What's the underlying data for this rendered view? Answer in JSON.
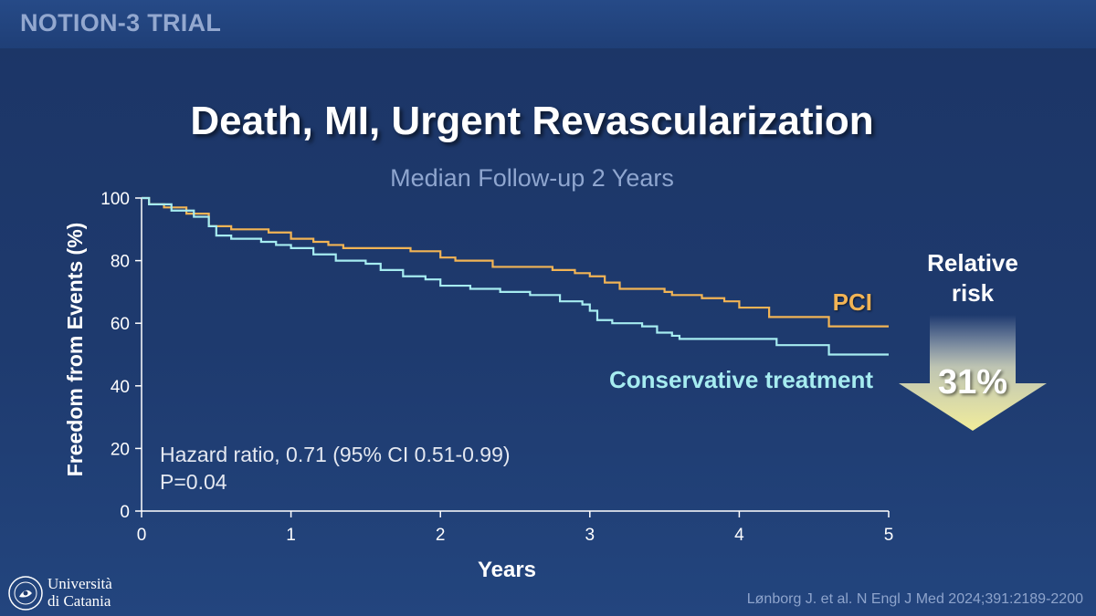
{
  "header": {
    "trial_name": "NOTION-3 TRIAL"
  },
  "chart_data": {
    "type": "line",
    "title": "Death, MI, Urgent Revascularization",
    "subtitle": "Median Follow-up 2 Years",
    "xlabel": "Years",
    "ylabel": "Freedom from Events (%)",
    "xlim": [
      0,
      5
    ],
    "ylim": [
      0,
      100
    ],
    "x_ticks": [
      0,
      1,
      2,
      3,
      4,
      5
    ],
    "y_ticks": [
      0,
      20,
      40,
      60,
      80,
      100
    ],
    "series": [
      {
        "name": "PCI",
        "color": "#f2b455",
        "step": true,
        "points": [
          [
            0,
            100
          ],
          [
            0.05,
            98
          ],
          [
            0.15,
            97
          ],
          [
            0.3,
            95
          ],
          [
            0.45,
            91
          ],
          [
            0.6,
            90
          ],
          [
            0.85,
            89
          ],
          [
            1.0,
            87
          ],
          [
            1.15,
            86
          ],
          [
            1.25,
            85
          ],
          [
            1.35,
            84
          ],
          [
            1.6,
            84
          ],
          [
            1.8,
            83
          ],
          [
            2.0,
            81
          ],
          [
            2.1,
            80
          ],
          [
            2.3,
            80
          ],
          [
            2.35,
            78
          ],
          [
            2.6,
            78
          ],
          [
            2.75,
            77
          ],
          [
            2.9,
            76
          ],
          [
            3.0,
            75
          ],
          [
            3.1,
            73
          ],
          [
            3.2,
            71
          ],
          [
            3.5,
            70
          ],
          [
            3.55,
            69
          ],
          [
            3.75,
            68
          ],
          [
            3.9,
            67
          ],
          [
            4.0,
            65
          ],
          [
            4.1,
            65
          ],
          [
            4.2,
            62
          ],
          [
            4.4,
            62
          ],
          [
            4.55,
            62
          ],
          [
            4.6,
            59
          ],
          [
            5.0,
            59
          ]
        ]
      },
      {
        "name": "Conservative treatment",
        "color": "#a6ecf0",
        "step": true,
        "points": [
          [
            0,
            100
          ],
          [
            0.05,
            98
          ],
          [
            0.2,
            96
          ],
          [
            0.35,
            94
          ],
          [
            0.45,
            91
          ],
          [
            0.5,
            88
          ],
          [
            0.6,
            87
          ],
          [
            0.8,
            86
          ],
          [
            0.9,
            85
          ],
          [
            1.0,
            84
          ],
          [
            1.15,
            82
          ],
          [
            1.3,
            80
          ],
          [
            1.5,
            79
          ],
          [
            1.6,
            77
          ],
          [
            1.75,
            75
          ],
          [
            1.9,
            74
          ],
          [
            2.0,
            72
          ],
          [
            2.2,
            71
          ],
          [
            2.4,
            70
          ],
          [
            2.6,
            69
          ],
          [
            2.8,
            67
          ],
          [
            2.95,
            66
          ],
          [
            3.0,
            64
          ],
          [
            3.05,
            61
          ],
          [
            3.15,
            60
          ],
          [
            3.35,
            59
          ],
          [
            3.45,
            57
          ],
          [
            3.55,
            56
          ],
          [
            3.6,
            55
          ],
          [
            3.75,
            55
          ],
          [
            4.0,
            55
          ],
          [
            4.1,
            55
          ],
          [
            4.25,
            53
          ],
          [
            4.5,
            53
          ],
          [
            4.6,
            50
          ],
          [
            5.0,
            50
          ]
        ]
      }
    ],
    "annotations": {
      "hazard_ratio": "Hazard ratio, 0.71 (95% CI 0.51-0.99)",
      "p_value": "P=0.04",
      "relative_risk_label": "Relative risk",
      "relative_risk_value": "31%"
    }
  },
  "footer": {
    "university_line1": "Università",
    "university_line2": "di Catania",
    "citation": "Lønborg J. et al. N Engl J Med 2024;391:2189-2200"
  }
}
